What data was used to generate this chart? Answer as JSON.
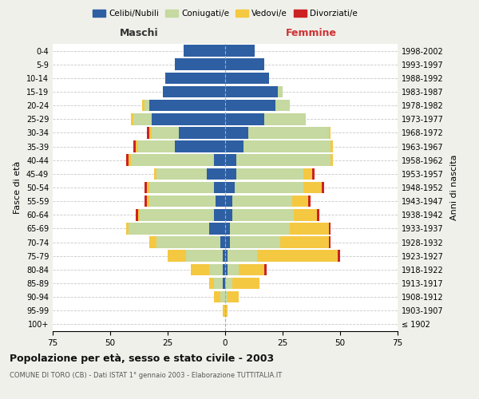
{
  "age_groups": [
    "100+",
    "95-99",
    "90-94",
    "85-89",
    "80-84",
    "75-79",
    "70-74",
    "65-69",
    "60-64",
    "55-59",
    "50-54",
    "45-49",
    "40-44",
    "35-39",
    "30-34",
    "25-29",
    "20-24",
    "15-19",
    "10-14",
    "5-9",
    "0-4"
  ],
  "birth_years": [
    "≤ 1902",
    "1903-1907",
    "1908-1912",
    "1913-1917",
    "1918-1922",
    "1923-1927",
    "1928-1932",
    "1933-1937",
    "1938-1942",
    "1943-1947",
    "1948-1952",
    "1953-1957",
    "1958-1962",
    "1963-1967",
    "1968-1972",
    "1973-1977",
    "1978-1982",
    "1983-1987",
    "1988-1992",
    "1993-1997",
    "1998-2002"
  ],
  "males": {
    "celibi": [
      0,
      0,
      0,
      1,
      1,
      1,
      2,
      7,
      5,
      4,
      5,
      8,
      5,
      22,
      20,
      32,
      33,
      27,
      26,
      22,
      18
    ],
    "coniugati": [
      0,
      0,
      2,
      4,
      6,
      16,
      28,
      35,
      32,
      29,
      28,
      22,
      36,
      16,
      12,
      8,
      2,
      0,
      0,
      0,
      0
    ],
    "vedovi": [
      0,
      1,
      3,
      2,
      8,
      8,
      3,
      1,
      1,
      1,
      1,
      1,
      1,
      1,
      1,
      1,
      1,
      0,
      0,
      0,
      0
    ],
    "divorziati": [
      0,
      0,
      0,
      0,
      0,
      0,
      0,
      0,
      1,
      1,
      1,
      0,
      1,
      1,
      1,
      0,
      0,
      0,
      0,
      0,
      0
    ]
  },
  "females": {
    "nubili": [
      0,
      0,
      0,
      0,
      1,
      1,
      2,
      2,
      3,
      3,
      4,
      5,
      5,
      8,
      10,
      17,
      22,
      23,
      19,
      17,
      13
    ],
    "coniugate": [
      0,
      0,
      1,
      3,
      5,
      13,
      22,
      26,
      27,
      26,
      30,
      29,
      41,
      38,
      35,
      18,
      6,
      2,
      0,
      0,
      0
    ],
    "vedove": [
      0,
      1,
      5,
      12,
      11,
      35,
      21,
      17,
      10,
      7,
      8,
      4,
      1,
      1,
      1,
      0,
      0,
      0,
      0,
      0,
      0
    ],
    "divorziate": [
      0,
      0,
      0,
      0,
      1,
      1,
      1,
      1,
      1,
      1,
      1,
      1,
      0,
      0,
      0,
      0,
      0,
      0,
      0,
      0,
      0
    ]
  },
  "colors": {
    "celibi": "#2e5fa3",
    "coniugati": "#c5d9a0",
    "vedovi": "#f5c842",
    "divorziati": "#cc2222"
  },
  "legend_labels": [
    "Celibi/Nubili",
    "Coniugati/e",
    "Vedovi/e",
    "Divorziati/e"
  ],
  "xlim": 75,
  "title": "Popolazione per età, sesso e stato civile - 2003",
  "subtitle": "COMUNE DI TORO (CB) - Dati ISTAT 1° gennaio 2003 - Elaborazione TUTTITALIA.IT",
  "ylabel_left": "Fasce di età",
  "ylabel_right": "Anni di nascita",
  "xlabel_males": "Maschi",
  "xlabel_females": "Femmine",
  "bg_color": "#f0f0eb",
  "plot_bg": "#ffffff"
}
